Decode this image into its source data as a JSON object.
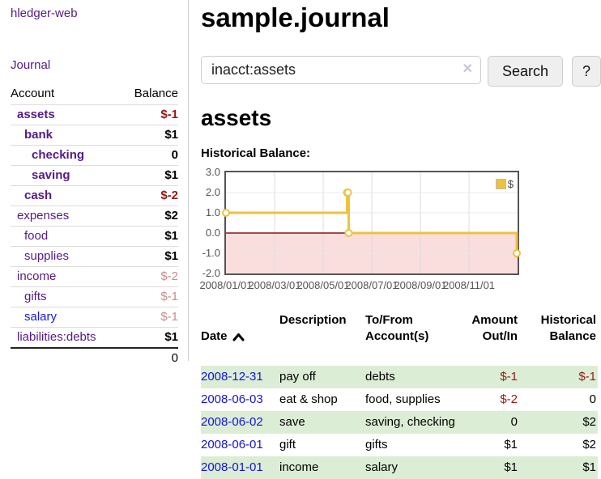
{
  "app": {
    "title": "hledger-web"
  },
  "colors": {
    "accent_purple": "#551a8b",
    "link_blue": "#1414dd",
    "negative_strong": "#941919",
    "negative_soft": "#c98d8d",
    "row_green": "#dcedd5",
    "series_yellow": "#edc240"
  },
  "sidebar": {
    "journal_link": "Journal",
    "table": {
      "col_account": "Account",
      "col_balance": "Balance",
      "rows": [
        {
          "label": "assets",
          "level": 1,
          "emph": true,
          "balance": "$-1",
          "tone": "neg-strong"
        },
        {
          "label": "bank",
          "level": 2,
          "emph": true,
          "balance": "$1",
          "tone": "normal"
        },
        {
          "label": "checking",
          "level": 3,
          "emph": true,
          "balance": "0",
          "tone": "normal"
        },
        {
          "label": "saving",
          "level": 3,
          "emph": true,
          "balance": "$1",
          "tone": "normal"
        },
        {
          "label": "cash",
          "level": 2,
          "emph": true,
          "balance": "$-2",
          "tone": "neg-strong"
        },
        {
          "label": "expenses",
          "level": 1,
          "emph": false,
          "balance": "$2",
          "tone": "normal"
        },
        {
          "label": "food",
          "level": 2,
          "emph": false,
          "balance": "$1",
          "tone": "normal"
        },
        {
          "label": "supplies",
          "level": 2,
          "emph": false,
          "balance": "$1",
          "tone": "normal"
        },
        {
          "label": "income",
          "level": 1,
          "emph": false,
          "balance": "$-2",
          "tone": "neg-soft"
        },
        {
          "label": "gifts",
          "level": 2,
          "emph": false,
          "balance": "$-1",
          "tone": "neg-soft"
        },
        {
          "label": "salary",
          "level": 2,
          "emph": false,
          "blue": true,
          "balance": "$-1",
          "tone": "neg-soft"
        },
        {
          "label": "liabilities:debts",
          "level": 1,
          "emph": false,
          "balance": "$1",
          "tone": "normal"
        }
      ],
      "total": "0"
    }
  },
  "header": {
    "title": "sample.journal"
  },
  "search": {
    "value": "inacct:assets",
    "clear_icon": "✕",
    "button_label": "Search",
    "help_label": "?"
  },
  "account_page": {
    "title": "assets",
    "chart_label": "Historical Balance:"
  },
  "chart_data": {
    "type": "line",
    "title": "Historical Balance",
    "step": true,
    "series": [
      {
        "name": "$",
        "color": "#edc240",
        "points": [
          [
            "2008-01-01",
            1
          ],
          [
            "2008-06-01",
            2
          ],
          [
            "2008-06-02",
            2
          ],
          [
            "2008-06-03",
            0
          ],
          [
            "2008-12-31",
            -1
          ]
        ]
      }
    ],
    "x_range": [
      "2008-01-01",
      "2009-01-01"
    ],
    "x_tick_labels": [
      "2008/01/01",
      "2008/03/01",
      "2008/05/01",
      "2008/07/01",
      "2008/09/01",
      "2008/11/01"
    ],
    "y_ticks": [
      "3.0",
      "2.0",
      "1.0",
      "0.0",
      "-1.0",
      "-2.0"
    ],
    "ylim": [
      -2,
      3
    ],
    "grid": true,
    "legend_position": "top-right",
    "negative_region_color": "#fadddd",
    "zero_line_color": "#8b1414"
  },
  "register": {
    "columns": {
      "date": "Date",
      "description": "Description",
      "accounts": "To/From\nAccount(s)",
      "amount": "Amount\nOut/In",
      "balance": "Historical\nBalance"
    },
    "sort": "ascending",
    "rows": [
      {
        "date": "2008-12-31",
        "description": "pay off",
        "accounts": "debts",
        "amount": "$-1",
        "amount_neg": true,
        "balance": "$-1",
        "balance_neg": true
      },
      {
        "date": "2008-06-03",
        "description": "eat & shop",
        "accounts": "food, supplies",
        "amount": "$-2",
        "amount_neg": true,
        "balance": "0",
        "balance_neg": false
      },
      {
        "date": "2008-06-02",
        "description": "save",
        "accounts": "saving, checking",
        "amount": "0",
        "amount_neg": false,
        "balance": "$2",
        "balance_neg": false
      },
      {
        "date": "2008-06-01",
        "description": "gift",
        "accounts": "gifts",
        "amount": "$1",
        "amount_neg": false,
        "balance": "$2",
        "balance_neg": false
      },
      {
        "date": "2008-01-01",
        "description": "income",
        "accounts": "salary",
        "amount": "$1",
        "amount_neg": false,
        "balance": "$1",
        "balance_neg": false
      }
    ]
  }
}
